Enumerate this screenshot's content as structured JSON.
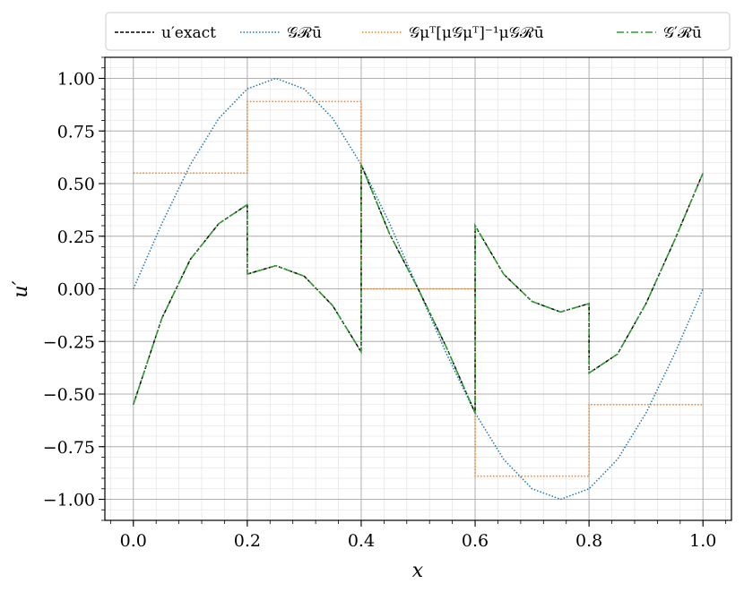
{
  "chart_data": {
    "type": "line",
    "xlabel": "x",
    "ylabel": "u′",
    "xlim": [
      -0.05,
      1.05
    ],
    "ylim": [
      -1.1,
      1.1
    ],
    "x_ticks": [
      0.0,
      0.2,
      0.4,
      0.6,
      0.8,
      1.0
    ],
    "x_tick_labels": [
      "0.0",
      "0.2",
      "0.4",
      "0.6",
      "0.8",
      "1.0"
    ],
    "y_ticks": [
      1.0,
      0.75,
      0.5,
      0.25,
      0.0,
      -0.25,
      -0.5,
      -0.75,
      -1.0
    ],
    "y_tick_labels": [
      "1.00",
      "0.75",
      "0.50",
      "0.25",
      "0.00",
      "−0.25",
      "−0.50",
      "−0.75",
      "−1.00"
    ],
    "grid": "major and minor",
    "legend_position": "top, above plot",
    "series": [
      {
        "name": "u′exact",
        "color": "#000000",
        "style": "dashed",
        "x": [
          0.0,
          0.05,
          0.1,
          0.15,
          0.2,
          0.2,
          0.25,
          0.3,
          0.35,
          0.4,
          0.4,
          0.45,
          0.5,
          0.55,
          0.6,
          0.6,
          0.65,
          0.7,
          0.75,
          0.8,
          0.8,
          0.85,
          0.9,
          0.95,
          1.0
        ],
        "y": [
          -0.55,
          -0.14,
          0.14,
          0.31,
          0.4,
          0.07,
          0.11,
          0.06,
          -0.08,
          -0.3,
          0.59,
          0.26,
          0.0,
          -0.28,
          -0.59,
          0.3,
          0.07,
          -0.06,
          -0.11,
          -0.07,
          -0.4,
          -0.31,
          -0.07,
          0.23,
          0.55
        ]
      },
      {
        "name": "𝒢ℛū",
        "color": "#1f77b4",
        "style": "dotted",
        "x": [
          0.0,
          0.05,
          0.1,
          0.15,
          0.2,
          0.25,
          0.3,
          0.35,
          0.4,
          0.45,
          0.5,
          0.55,
          0.6,
          0.65,
          0.7,
          0.75,
          0.8,
          0.85,
          0.9,
          0.95,
          1.0
        ],
        "y": [
          0.0,
          0.31,
          0.59,
          0.81,
          0.95,
          1.0,
          0.95,
          0.81,
          0.59,
          0.31,
          0.0,
          -0.31,
          -0.59,
          -0.81,
          -0.95,
          -1.0,
          -0.95,
          -0.81,
          -0.59,
          -0.31,
          0.0
        ]
      },
      {
        "name": "𝒢μᵀ[μ𝒢μᵀ]⁻¹μ𝒢ℛū",
        "color": "#ff7f0e",
        "style": "dotted",
        "x": [
          0.0,
          0.2,
          0.2,
          0.4,
          0.4,
          0.6,
          0.6,
          0.8,
          0.8,
          1.0
        ],
        "y": [
          0.55,
          0.55,
          0.89,
          0.89,
          0.0,
          0.0,
          -0.89,
          -0.89,
          -0.55,
          -0.55
        ]
      },
      {
        "name": "𝒢′ℛū",
        "color": "#2ca02c",
        "style": "dashdot",
        "x": [
          0.0,
          0.05,
          0.1,
          0.15,
          0.2,
          0.2,
          0.25,
          0.3,
          0.35,
          0.4,
          0.4,
          0.45,
          0.5,
          0.55,
          0.6,
          0.6,
          0.65,
          0.7,
          0.75,
          0.8,
          0.8,
          0.85,
          0.9,
          0.95,
          1.0
        ],
        "y": [
          -0.55,
          -0.14,
          0.14,
          0.31,
          0.4,
          0.07,
          0.11,
          0.06,
          -0.08,
          -0.3,
          0.59,
          0.26,
          0.0,
          -0.28,
          -0.59,
          0.3,
          0.07,
          -0.06,
          -0.11,
          -0.07,
          -0.4,
          -0.31,
          -0.07,
          0.23,
          0.55
        ]
      }
    ]
  }
}
